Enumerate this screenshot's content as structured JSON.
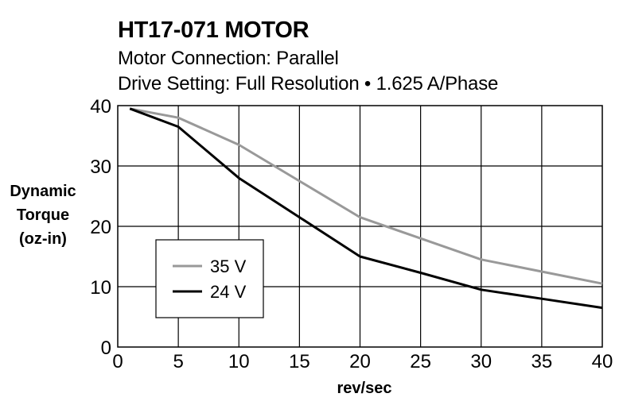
{
  "chart_data": {
    "type": "line",
    "title": "HT17-071 MOTOR",
    "subtitle_lines": [
      "Motor Connection: Parallel",
      "Drive Setting: Full Resolution • 1.625 A/Phase"
    ],
    "ylabel_lines": [
      "Dynamic",
      "Torque",
      "(oz-in)"
    ],
    "xlabel": "rev/sec",
    "xlim": [
      0,
      40
    ],
    "ylim": [
      0,
      40
    ],
    "xticks": [
      0,
      5,
      10,
      15,
      20,
      25,
      30,
      35,
      40
    ],
    "yticks": [
      0,
      10,
      20,
      30,
      40
    ],
    "grid": true,
    "legend_position": "lower-left",
    "series": [
      {
        "name": "35 V",
        "color": "#999999",
        "x": [
          1,
          5,
          10,
          15,
          20,
          25,
          30,
          35,
          40
        ],
        "y": [
          39.5,
          38.0,
          33.5,
          27.5,
          21.5,
          18.0,
          14.5,
          12.5,
          10.5
        ]
      },
      {
        "name": "24 V",
        "color": "#000000",
        "x": [
          1,
          5,
          10,
          15,
          20,
          25,
          30,
          35,
          40
        ],
        "y": [
          39.5,
          36.5,
          28.0,
          21.5,
          15.0,
          12.3,
          9.5,
          8.0,
          6.5
        ]
      }
    ]
  }
}
